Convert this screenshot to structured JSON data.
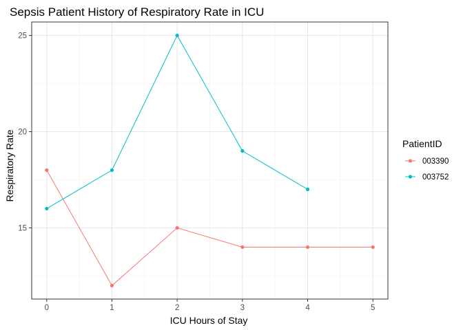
{
  "chart_data": {
    "type": "line",
    "title": "Sepsis Patient History of Respiratory Rate in ICU",
    "xlabel": "ICU Hours of Stay",
    "ylabel": "Respiratory Rate",
    "x_ticks": [
      "0",
      "1",
      "2",
      "3",
      "4",
      "5"
    ],
    "y_ticks": [
      "15",
      "20",
      "25"
    ],
    "xlim": [
      -0.23,
      5.23
    ],
    "ylim": [
      11.3,
      25.7
    ],
    "grid": true,
    "legend": {
      "title": "PatientID",
      "placement": "right"
    },
    "series": [
      {
        "name": "003390",
        "color": "#F8766D",
        "x": [
          0,
          1,
          2,
          3,
          4,
          5
        ],
        "y": [
          18,
          12,
          15,
          14,
          14,
          14
        ]
      },
      {
        "name": "003752",
        "color": "#00BFC4",
        "x": [
          0,
          1,
          2,
          3,
          4
        ],
        "y": [
          16,
          18,
          25,
          19,
          17
        ]
      }
    ]
  }
}
